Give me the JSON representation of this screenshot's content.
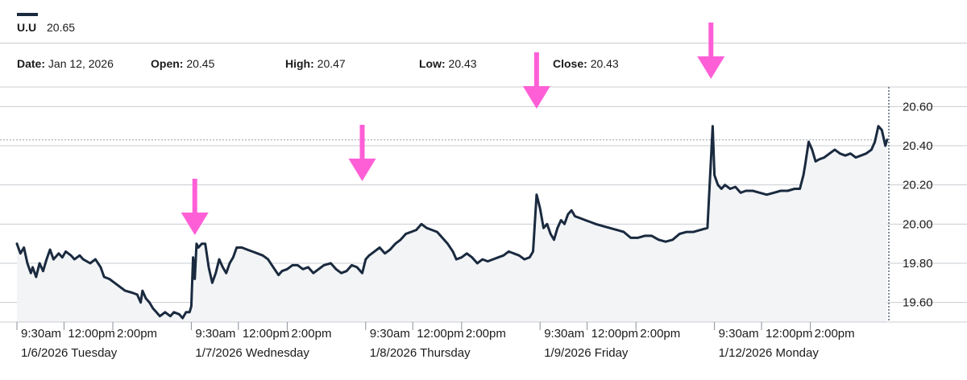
{
  "header": {
    "symbol": "U.U",
    "price": "20.65"
  },
  "ohlc": [
    {
      "label": "Date:",
      "value": "Jan 12, 2026"
    },
    {
      "label": "Open:",
      "value": "20.45"
    },
    {
      "label": "High:",
      "value": "20.47"
    },
    {
      "label": "Low:",
      "value": "20.43"
    },
    {
      "label": "Close:",
      "value": "20.43"
    }
  ],
  "colors": {
    "line": "#1a2a3f",
    "area": "#f2f4f6",
    "grid": "#c9ccd2",
    "arrow": "#ff5fd6"
  },
  "chart_data": {
    "type": "area",
    "title": "",
    "xlabel": "",
    "ylabel": "",
    "ylim": [
      19.5,
      20.7
    ],
    "yticks": [
      "20.60",
      "20.40",
      "20.20",
      "20.00",
      "19.80",
      "19.60"
    ],
    "reference_line": 20.43,
    "days": [
      {
        "label": "1/6/2026 Tuesday",
        "times": [
          "9:30am",
          "12:00pm",
          "2:00pm"
        ]
      },
      {
        "label": "1/7/2026 Wednesday",
        "times": [
          "9:30am",
          "12:00pm",
          "2:00pm"
        ]
      },
      {
        "label": "1/8/2026 Thursday",
        "times": [
          "9:30am",
          "12:00pm",
          "2:00pm"
        ]
      },
      {
        "label": "1/9/2026 Friday",
        "times": [
          "9:30am",
          "12:00pm",
          "2:00pm"
        ]
      },
      {
        "label": "1/12/2026 Monday",
        "times": [
          "9:30am",
          "12:00pm",
          "2:00pm"
        ]
      }
    ],
    "annotations": [
      {
        "type": "arrow",
        "day": 1,
        "t": 0.02
      },
      {
        "type": "arrow",
        "day": 2,
        "t": 0.98
      },
      {
        "type": "arrow",
        "day": 3,
        "t": 0.98
      },
      {
        "type": "arrow",
        "day": 4,
        "t": 0.98
      }
    ],
    "series": [
      {
        "values": [
          [
            0.0,
            19.9
          ],
          [
            0.02,
            19.85
          ],
          [
            0.04,
            19.88
          ],
          [
            0.06,
            19.8
          ],
          [
            0.08,
            19.75
          ],
          [
            0.09,
            19.78
          ],
          [
            0.11,
            19.73
          ],
          [
            0.13,
            19.8
          ],
          [
            0.15,
            19.76
          ],
          [
            0.17,
            19.82
          ],
          [
            0.19,
            19.87
          ],
          [
            0.21,
            19.82
          ],
          [
            0.24,
            19.85
          ],
          [
            0.26,
            19.83
          ],
          [
            0.28,
            19.86
          ],
          [
            0.31,
            19.84
          ],
          [
            0.33,
            19.82
          ],
          [
            0.36,
            19.84
          ],
          [
            0.38,
            19.82
          ],
          [
            0.42,
            19.8
          ],
          [
            0.45,
            19.82
          ],
          [
            0.48,
            19.78
          ],
          [
            0.5,
            19.73
          ],
          [
            0.53,
            19.72
          ],
          [
            0.56,
            19.7
          ],
          [
            0.59,
            19.68
          ],
          [
            0.62,
            19.66
          ],
          [
            0.66,
            19.65
          ],
          [
            0.69,
            19.64
          ],
          [
            0.71,
            19.6
          ],
          [
            0.72,
            19.66
          ],
          [
            0.74,
            19.62
          ],
          [
            0.76,
            19.6
          ],
          [
            0.78,
            19.57
          ],
          [
            0.8,
            19.55
          ],
          [
            0.82,
            19.53
          ],
          [
            0.85,
            19.55
          ],
          [
            0.88,
            19.53
          ],
          [
            0.9,
            19.55
          ],
          [
            0.93,
            19.54
          ],
          [
            0.95,
            19.52
          ],
          [
            0.97,
            19.55
          ],
          [
            0.99,
            19.55
          ],
          [
            1.0,
            19.58
          ],
          [
            1.01,
            19.83
          ],
          [
            1.02,
            19.72
          ],
          [
            1.03,
            19.9
          ],
          [
            1.04,
            19.88
          ],
          [
            1.06,
            19.9
          ],
          [
            1.08,
            19.9
          ],
          [
            1.1,
            19.78
          ],
          [
            1.12,
            19.7
          ],
          [
            1.14,
            19.75
          ],
          [
            1.16,
            19.82
          ],
          [
            1.18,
            19.78
          ],
          [
            1.2,
            19.75
          ],
          [
            1.22,
            19.8
          ],
          [
            1.24,
            19.83
          ],
          [
            1.26,
            19.88
          ],
          [
            1.29,
            19.88
          ],
          [
            1.32,
            19.87
          ],
          [
            1.35,
            19.86
          ],
          [
            1.38,
            19.85
          ],
          [
            1.41,
            19.84
          ],
          [
            1.44,
            19.82
          ],
          [
            1.47,
            19.78
          ],
          [
            1.5,
            19.74
          ],
          [
            1.52,
            19.76
          ],
          [
            1.55,
            19.77
          ],
          [
            1.58,
            19.79
          ],
          [
            1.61,
            19.79
          ],
          [
            1.64,
            19.77
          ],
          [
            1.67,
            19.78
          ],
          [
            1.7,
            19.75
          ],
          [
            1.73,
            19.77
          ],
          [
            1.76,
            19.79
          ],
          [
            1.8,
            19.8
          ],
          [
            1.83,
            19.77
          ],
          [
            1.86,
            19.75
          ],
          [
            1.89,
            19.76
          ],
          [
            1.92,
            19.79
          ],
          [
            1.95,
            19.78
          ],
          [
            1.98,
            19.75
          ],
          [
            2.0,
            19.82
          ],
          [
            2.02,
            19.84
          ],
          [
            2.05,
            19.86
          ],
          [
            2.08,
            19.88
          ],
          [
            2.11,
            19.85
          ],
          [
            2.14,
            19.87
          ],
          [
            2.17,
            19.9
          ],
          [
            2.2,
            19.92
          ],
          [
            2.23,
            19.95
          ],
          [
            2.26,
            19.96
          ],
          [
            2.29,
            19.97
          ],
          [
            2.32,
            20.0
          ],
          [
            2.35,
            19.98
          ],
          [
            2.38,
            19.97
          ],
          [
            2.41,
            19.96
          ],
          [
            2.44,
            19.93
          ],
          [
            2.47,
            19.9
          ],
          [
            2.5,
            19.86
          ],
          [
            2.52,
            19.82
          ],
          [
            2.55,
            19.83
          ],
          [
            2.58,
            19.85
          ],
          [
            2.61,
            19.83
          ],
          [
            2.64,
            19.8
          ],
          [
            2.67,
            19.82
          ],
          [
            2.7,
            19.81
          ],
          [
            2.73,
            19.82
          ],
          [
            2.76,
            19.83
          ],
          [
            2.79,
            19.84
          ],
          [
            2.82,
            19.86
          ],
          [
            2.85,
            19.85
          ],
          [
            2.88,
            19.84
          ],
          [
            2.91,
            19.82
          ],
          [
            2.94,
            19.83
          ],
          [
            2.96,
            19.86
          ],
          [
            2.98,
            20.15
          ],
          [
            3.0,
            20.08
          ],
          [
            3.02,
            19.98
          ],
          [
            3.04,
            20.0
          ],
          [
            3.06,
            19.95
          ],
          [
            3.08,
            19.92
          ],
          [
            3.1,
            19.98
          ],
          [
            3.12,
            20.02
          ],
          [
            3.14,
            20.0
          ],
          [
            3.16,
            20.05
          ],
          [
            3.18,
            20.07
          ],
          [
            3.2,
            20.04
          ],
          [
            3.23,
            20.03
          ],
          [
            3.26,
            20.02
          ],
          [
            3.29,
            20.01
          ],
          [
            3.32,
            20.0
          ],
          [
            3.36,
            19.99
          ],
          [
            3.4,
            19.98
          ],
          [
            3.44,
            19.97
          ],
          [
            3.48,
            19.96
          ],
          [
            3.52,
            19.93
          ],
          [
            3.56,
            19.93
          ],
          [
            3.6,
            19.94
          ],
          [
            3.64,
            19.94
          ],
          [
            3.68,
            19.92
          ],
          [
            3.72,
            19.91
          ],
          [
            3.76,
            19.92
          ],
          [
            3.8,
            19.95
          ],
          [
            3.84,
            19.96
          ],
          [
            3.88,
            19.96
          ],
          [
            3.92,
            19.97
          ],
          [
            3.96,
            19.98
          ],
          [
            3.99,
            20.5
          ],
          [
            4.0,
            20.25
          ],
          [
            4.02,
            20.2
          ],
          [
            4.04,
            20.18
          ],
          [
            4.06,
            20.2
          ],
          [
            4.09,
            20.18
          ],
          [
            4.12,
            20.19
          ],
          [
            4.15,
            20.16
          ],
          [
            4.18,
            20.17
          ],
          [
            4.22,
            20.17
          ],
          [
            4.26,
            20.16
          ],
          [
            4.3,
            20.15
          ],
          [
            4.34,
            20.16
          ],
          [
            4.38,
            20.17
          ],
          [
            4.42,
            20.17
          ],
          [
            4.46,
            20.18
          ],
          [
            4.49,
            20.18
          ],
          [
            4.51,
            20.25
          ],
          [
            4.52,
            20.3
          ],
          [
            4.54,
            20.42
          ],
          [
            4.56,
            20.38
          ],
          [
            4.58,
            20.32
          ],
          [
            4.6,
            20.33
          ],
          [
            4.63,
            20.34
          ],
          [
            4.66,
            20.36
          ],
          [
            4.69,
            20.38
          ],
          [
            4.72,
            20.36
          ],
          [
            4.75,
            20.35
          ],
          [
            4.78,
            20.36
          ],
          [
            4.81,
            20.34
          ],
          [
            4.84,
            20.35
          ],
          [
            4.87,
            20.36
          ],
          [
            4.9,
            20.38
          ],
          [
            4.92,
            20.42
          ],
          [
            4.94,
            20.5
          ],
          [
            4.96,
            20.48
          ],
          [
            4.98,
            20.4
          ],
          [
            4.99,
            20.43
          ]
        ]
      }
    ]
  }
}
